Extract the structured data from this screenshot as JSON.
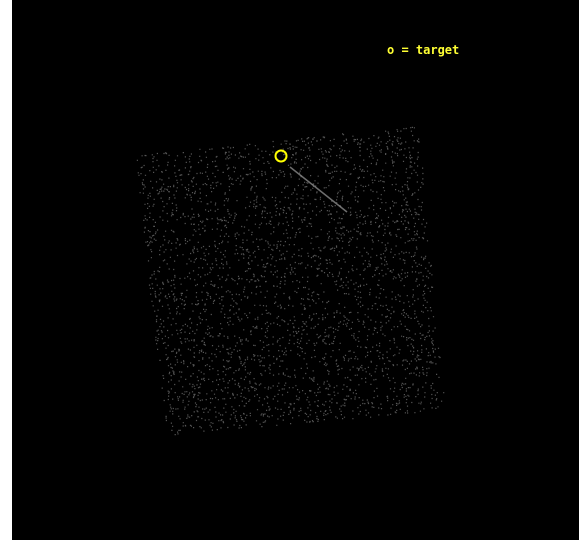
{
  "legend": "o = target"
}
